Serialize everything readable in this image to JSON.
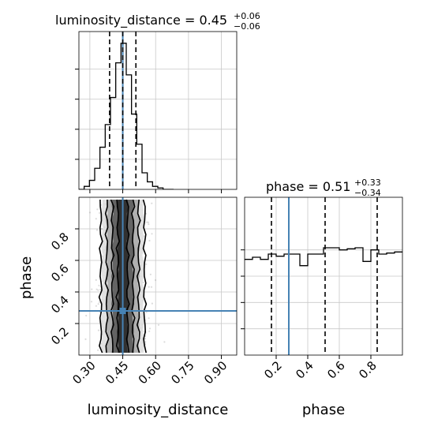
{
  "chart_data": {
    "type": "corner",
    "parameters": [
      "luminosity_distance",
      "phase"
    ],
    "truth": {
      "luminosity_distance": 0.45,
      "phase": 0.28
    },
    "colors": {
      "truth": "#4682b4",
      "hist": "#000000",
      "grid": "#c8c8c8",
      "points": "#9a9a9a"
    },
    "panels": [
      {
        "id": "hist-luminosity_distance",
        "title": {
          "prefix": "luminosity_distance = 0.45",
          "sup": "+0.06",
          "sub": "−0.06"
        },
        "xlim": [
          0.25,
          0.97
        ],
        "quantiles": [
          0.39,
          0.45,
          0.51
        ],
        "bin_edges": [
          0.25,
          0.274,
          0.298,
          0.322,
          0.346,
          0.37,
          0.394,
          0.418,
          0.442,
          0.466,
          0.49,
          0.514,
          0.538,
          0.562,
          0.586,
          0.61,
          0.634,
          0.658,
          0.682
        ],
        "counts": [
          0.0,
          0.02,
          0.06,
          0.14,
          0.28,
          0.43,
          0.61,
          0.84,
          0.97,
          0.76,
          0.5,
          0.3,
          0.11,
          0.05,
          0.02,
          0.01,
          0.0,
          0.0
        ]
      },
      {
        "id": "hist-phase",
        "title": {
          "prefix": "phase = 0.51",
          "sup": "+0.33",
          "sub": "−0.34"
        },
        "xlim": [
          0.0,
          1.0
        ],
        "quantiles": [
          0.17,
          0.51,
          0.84
        ],
        "bin_edges": [
          0.0,
          0.05,
          0.1,
          0.15,
          0.2,
          0.25,
          0.3,
          0.35,
          0.4,
          0.45,
          0.5,
          0.55,
          0.6,
          0.65,
          0.7,
          0.75,
          0.8,
          0.85,
          0.9,
          0.95,
          1.0
        ],
        "counts": [
          0.91,
          0.93,
          0.91,
          0.96,
          0.94,
          0.96,
          0.96,
          0.85,
          0.96,
          0.96,
          1.02,
          1.02,
          1.0,
          1.01,
          1.02,
          0.89,
          1.0,
          0.96,
          0.97,
          0.98
        ]
      }
    ],
    "scatter_panel": {
      "x_param": "luminosity_distance",
      "y_param": "phase",
      "xlim": [
        0.25,
        0.97
      ],
      "ylim": [
        0.0,
        1.0
      ],
      "density": {
        "x_center": 0.45,
        "x_sigma": 0.05,
        "y_range": [
          0.02,
          0.98
        ]
      }
    },
    "axes": {
      "luminosity_distance": {
        "label": "luminosity_distance",
        "ticks": [
          0.3,
          0.45,
          0.6,
          0.75,
          0.9
        ],
        "tick_labels": [
          "0.30",
          "0.45",
          "0.60",
          "0.75",
          "0.90"
        ]
      },
      "phase": {
        "label": "phase",
        "ticks": [
          0.2,
          0.4,
          0.6,
          0.8
        ],
        "tick_labels": [
          "0.2",
          "0.4",
          "0.6",
          "0.8"
        ]
      }
    },
    "grid": true
  }
}
